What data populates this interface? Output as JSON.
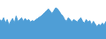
{
  "chart_data": {
    "type": "area",
    "values": [
      55,
      50,
      60,
      45,
      55,
      40,
      50,
      58,
      45,
      65,
      50,
      55,
      60,
      50,
      58,
      52,
      55,
      48,
      52,
      50,
      55,
      58,
      62,
      65,
      70,
      75,
      80,
      85,
      78,
      72,
      80,
      88,
      85,
      78,
      70,
      65,
      55,
      50,
      60,
      55,
      48,
      55,
      52,
      48,
      55,
      60,
      50,
      45,
      55,
      48,
      52,
      40,
      50,
      42,
      35,
      42,
      38,
      45,
      40,
      50
    ],
    "color": "#4f9ed6",
    "ylim": [
      0,
      110
    ],
    "grid": false,
    "tick_labels": false
  }
}
